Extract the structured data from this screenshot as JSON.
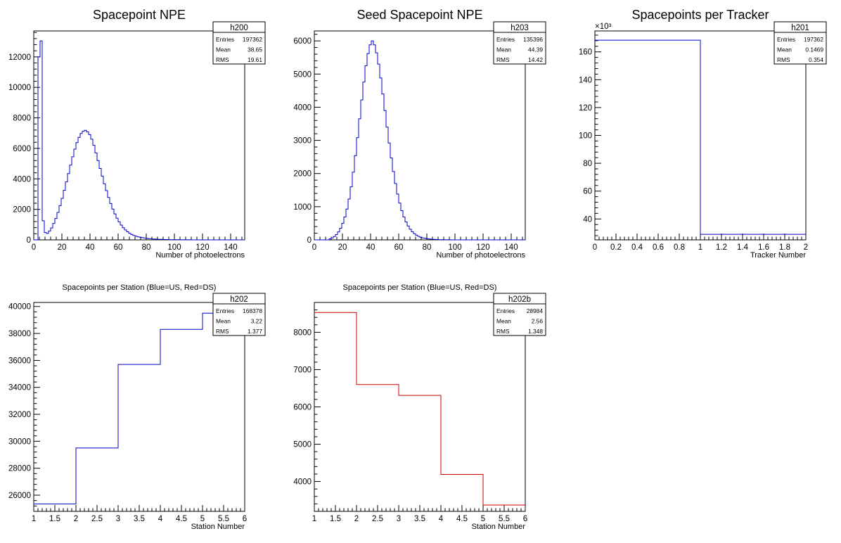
{
  "colors": {
    "blue": "#0000cc",
    "red": "#cc0000",
    "frame": "#000000",
    "background": "#ffffff"
  },
  "chart_data": [
    {
      "id": "h200",
      "type": "histogram",
      "title": "Spacepoint NPE",
      "xlabel": "Number of photoelectrons",
      "ylabel": "",
      "xlim": [
        0,
        150
      ],
      "ylim": [
        0,
        13700
      ],
      "x_ticks": [
        0,
        20,
        40,
        60,
        80,
        100,
        120,
        140
      ],
      "y_ticks": [
        0,
        2000,
        4000,
        6000,
        8000,
        10000,
        12000
      ],
      "bin_width": 1.5,
      "bin_start": 0,
      "values": [
        0,
        0,
        12000,
        13050,
        1250,
        480,
        420,
        580,
        780,
        1080,
        1400,
        1800,
        2250,
        2720,
        3250,
        3800,
        4350,
        4900,
        5450,
        5950,
        6380,
        6720,
        6980,
        7120,
        7180,
        7080,
        6900,
        6600,
        6200,
        5700,
        5200,
        4680,
        4180,
        3680,
        3230,
        2780,
        2380,
        2020,
        1700,
        1420,
        1180,
        970,
        800,
        650,
        530,
        430,
        350,
        290,
        240,
        200,
        170,
        145,
        120,
        100,
        85,
        72,
        60,
        50,
        42,
        36,
        30,
        26,
        22,
        18,
        15,
        13,
        11,
        9,
        7,
        6,
        5,
        4,
        3,
        3,
        2,
        2,
        1,
        1,
        1,
        0,
        0,
        0,
        0,
        0,
        0,
        0,
        0,
        0,
        0,
        0,
        0,
        0,
        0,
        0,
        0,
        0,
        0,
        0,
        0,
        0
      ],
      "color": "#0000cc",
      "stats": {
        "name": "h200",
        "Entries": "197362",
        "Mean": "38.65",
        "RMS": "19.61"
      }
    },
    {
      "id": "h203",
      "type": "histogram",
      "title": "Seed Spacepoint NPE",
      "xlabel": "Number of photoelectrons",
      "ylabel": "",
      "xlim": [
        0,
        150
      ],
      "ylim": [
        0,
        6300
      ],
      "x_ticks": [
        0,
        20,
        40,
        60,
        80,
        100,
        120,
        140
      ],
      "y_ticks": [
        0,
        1000,
        2000,
        3000,
        4000,
        5000,
        6000
      ],
      "bin_width": 1.5,
      "bin_start": 0,
      "values": [
        0,
        0,
        0,
        0,
        0,
        0,
        0,
        30,
        60,
        100,
        160,
        240,
        350,
        500,
        690,
        930,
        1230,
        1600,
        2040,
        2540,
        3080,
        3650,
        4220,
        4760,
        5250,
        5620,
        5880,
        6000,
        5880,
        5640,
        5300,
        4880,
        4400,
        3900,
        3400,
        2920,
        2470,
        2060,
        1700,
        1380,
        1110,
        880,
        690,
        540,
        420,
        320,
        245,
        185,
        140,
        105,
        80,
        60,
        46,
        35,
        27,
        21,
        16,
        12,
        9,
        7,
        5,
        4,
        3,
        2,
        2,
        1,
        1,
        1,
        0,
        0,
        0,
        0,
        0,
        0,
        0,
        0,
        0,
        0,
        0,
        0,
        0,
        0,
        0,
        0,
        0,
        0,
        0,
        0,
        0,
        0,
        0,
        0,
        0,
        0,
        0,
        0,
        0,
        0,
        0,
        0
      ],
      "color": "#0000cc",
      "stats": {
        "name": "h203",
        "Entries": "135396",
        "Mean": "44.39",
        "RMS": "14.42"
      }
    },
    {
      "id": "h201",
      "type": "histogram",
      "title": "Spacepoints per Tracker",
      "xlabel": "Tracker Number",
      "ylabel": "",
      "exponent_label": "×10³",
      "xlim": [
        0,
        2
      ],
      "ylim": [
        25,
        175
      ],
      "x_ticks": [
        0,
        0.2,
        0.4,
        0.6,
        0.8,
        1,
        1.2,
        1.4,
        1.6,
        1.8,
        2
      ],
      "y_ticks": [
        40,
        60,
        80,
        100,
        120,
        140,
        160
      ],
      "bin_edges": [
        0,
        1,
        2
      ],
      "values": [
        168.4,
        29.0
      ],
      "color": "#0000cc",
      "stats": {
        "name": "h201",
        "Entries": "197362",
        "Mean": "0.1469",
        "RMS": "0.354"
      }
    },
    {
      "id": "h202",
      "type": "histogram",
      "title": "Spacepoints per Station (Blue=US, Red=DS)",
      "xlabel": "Station Number",
      "ylabel": "",
      "xlim": [
        1,
        6
      ],
      "ylim": [
        24800,
        40300
      ],
      "x_ticks": [
        1,
        1.5,
        2,
        2.5,
        3,
        3.5,
        4,
        4.5,
        5,
        5.5,
        6
      ],
      "y_ticks": [
        26000,
        28000,
        30000,
        32000,
        34000,
        36000,
        38000,
        40000
      ],
      "bin_edges": [
        1,
        2,
        3,
        4,
        5,
        6
      ],
      "values": [
        25350,
        29500,
        35700,
        38300,
        39500
      ],
      "color": "#0000cc",
      "stats": {
        "name": "h202",
        "Entries": "168378",
        "Mean": "3.22",
        "RMS": "1.377"
      }
    },
    {
      "id": "h202b",
      "type": "histogram",
      "title": "Spacepoints per Station (Blue=US, Red=DS)",
      "xlabel": "Station Number",
      "ylabel": "",
      "xlim": [
        1,
        6
      ],
      "ylim": [
        3200,
        8800
      ],
      "x_ticks": [
        1,
        1.5,
        2,
        2.5,
        3,
        3.5,
        4,
        4.5,
        5,
        5.5,
        6
      ],
      "y_ticks": [
        4000,
        5000,
        6000,
        7000,
        8000
      ],
      "bin_edges": [
        1,
        2,
        3,
        4,
        5,
        6
      ],
      "values": [
        8530,
        6600,
        6310,
        4190,
        3370
      ],
      "color": "#cc0000",
      "stats": {
        "name": "h202b",
        "Entries": "28984",
        "Mean": "2.56",
        "RMS": "1.348"
      }
    }
  ]
}
